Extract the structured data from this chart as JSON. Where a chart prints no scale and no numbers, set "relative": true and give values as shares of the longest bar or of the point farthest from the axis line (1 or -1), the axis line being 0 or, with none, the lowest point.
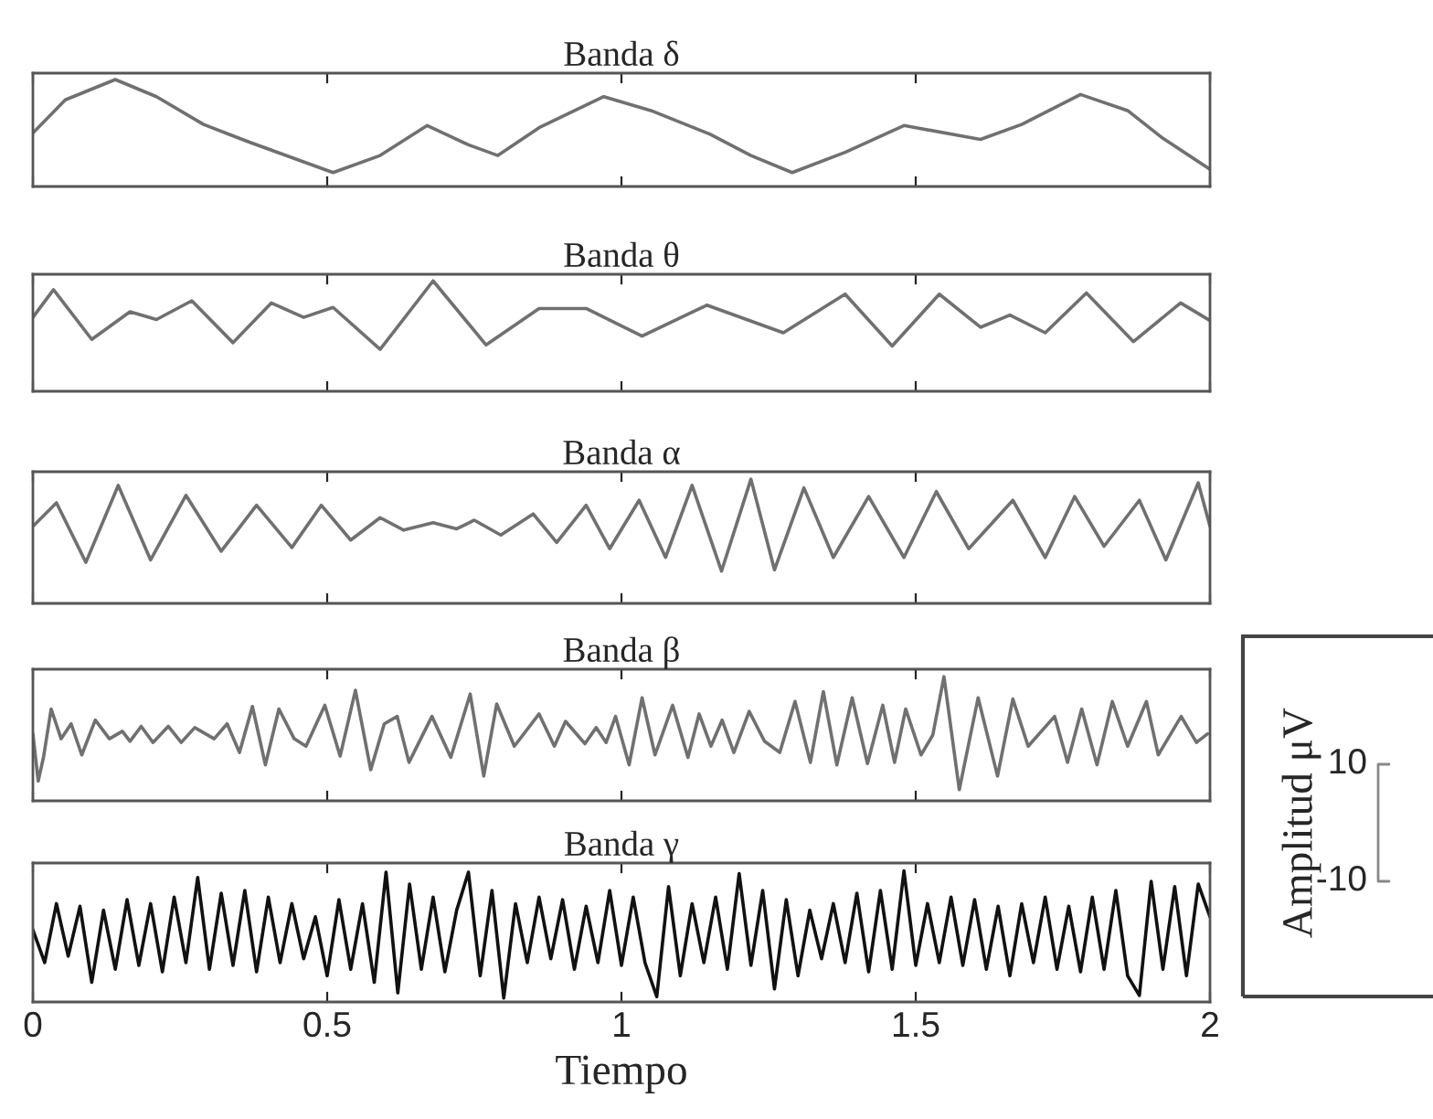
{
  "chart_data": [
    {
      "type": "line",
      "title": "Banda δ",
      "relative": true,
      "xlim": [
        0,
        2
      ],
      "xticks": [
        0,
        0.5,
        1,
        1.5,
        2
      ],
      "tick_labels": false,
      "series": [
        {
          "color": "#707070",
          "x": [
            0,
            0.055,
            0.14,
            0.21,
            0.29,
            0.37,
            0.51,
            0.59,
            0.67,
            0.74,
            0.79,
            0.86,
            0.97,
            1.05,
            1.15,
            1.22,
            1.29,
            1.38,
            1.48,
            1.61,
            1.68,
            1.78,
            1.86,
            1.92,
            2.0
          ],
          "values": [
            0.5,
            0.81,
            1.0,
            0.84,
            0.58,
            0.41,
            0.13,
            0.29,
            0.57,
            0.39,
            0.29,
            0.55,
            0.84,
            0.71,
            0.49,
            0.29,
            0.13,
            0.32,
            0.57,
            0.44,
            0.58,
            0.86,
            0.71,
            0.45,
            0.16
          ]
        }
      ]
    },
    {
      "type": "line",
      "title": "Banda θ",
      "relative": true,
      "xlim": [
        0,
        2
      ],
      "xticks": [
        0,
        0.5,
        1,
        1.5,
        2
      ],
      "tick_labels": false,
      "series": [
        {
          "color": "#707070",
          "x": [
            0,
            0.035,
            0.1,
            0.165,
            0.21,
            0.27,
            0.34,
            0.405,
            0.46,
            0.51,
            0.59,
            0.68,
            0.77,
            0.86,
            0.94,
            1.035,
            1.145,
            1.275,
            1.38,
            1.46,
            1.54,
            1.61,
            1.66,
            1.72,
            1.79,
            1.87,
            1.95,
            2.0
          ],
          "values": [
            0.67,
            0.92,
            0.47,
            0.72,
            0.65,
            0.82,
            0.44,
            0.8,
            0.67,
            0.76,
            0.38,
            1.0,
            0.42,
            0.75,
            0.75,
            0.5,
            0.78,
            0.53,
            0.88,
            0.41,
            0.88,
            0.58,
            0.69,
            0.53,
            0.89,
            0.45,
            0.8,
            0.64
          ]
        }
      ]
    },
    {
      "type": "line",
      "title": "Banda α",
      "relative": true,
      "xlim": [
        0,
        2
      ],
      "xticks": [
        0,
        0.5,
        1,
        1.5,
        2
      ],
      "tick_labels": false,
      "series": [
        {
          "color": "#707070",
          "x": [
            0,
            0.04,
            0.09,
            0.145,
            0.2,
            0.26,
            0.32,
            0.38,
            0.44,
            0.49,
            0.54,
            0.59,
            0.63,
            0.68,
            0.72,
            0.75,
            0.795,
            0.85,
            0.89,
            0.94,
            0.98,
            1.03,
            1.075,
            1.12,
            1.17,
            1.22,
            1.26,
            1.31,
            1.36,
            1.42,
            1.48,
            1.535,
            1.59,
            1.665,
            1.72,
            1.77,
            1.82,
            1.88,
            1.925,
            1.98,
            2.0
          ],
          "values": [
            0.62,
            0.81,
            0.33,
            0.95,
            0.35,
            0.87,
            0.42,
            0.79,
            0.45,
            0.79,
            0.51,
            0.69,
            0.59,
            0.65,
            0.6,
            0.67,
            0.55,
            0.72,
            0.49,
            0.79,
            0.44,
            0.83,
            0.37,
            0.95,
            0.26,
            1.0,
            0.27,
            0.93,
            0.37,
            0.86,
            0.37,
            0.9,
            0.44,
            0.83,
            0.37,
            0.86,
            0.46,
            0.83,
            0.35,
            0.97,
            0.62
          ]
        }
      ]
    },
    {
      "type": "line",
      "title": "Banda β",
      "relative": true,
      "xlim": [
        0,
        2
      ],
      "xticks": [
        0,
        0.5,
        1,
        1.5,
        2
      ],
      "tick_labels": false,
      "series": [
        {
          "color": "#707070",
          "x": [
            0,
            0.009,
            0.018,
            0.031,
            0.048,
            0.065,
            0.083,
            0.106,
            0.13,
            0.152,
            0.165,
            0.184,
            0.204,
            0.23,
            0.252,
            0.275,
            0.308,
            0.33,
            0.351,
            0.373,
            0.395,
            0.418,
            0.444,
            0.464,
            0.496,
            0.522,
            0.548,
            0.574,
            0.597,
            0.619,
            0.639,
            0.678,
            0.71,
            0.743,
            0.766,
            0.788,
            0.818,
            0.86,
            0.886,
            0.905,
            0.938,
            0.957,
            0.974,
            0.99,
            1.013,
            1.035,
            1.057,
            1.087,
            1.113,
            1.132,
            1.152,
            1.171,
            1.191,
            1.217,
            1.243,
            1.269,
            1.295,
            1.321,
            1.343,
            1.366,
            1.392,
            1.418,
            1.444,
            1.464,
            1.483,
            1.509,
            1.529,
            1.548,
            1.574,
            1.606,
            1.639,
            1.665,
            1.691,
            1.736,
            1.758,
            1.782,
            1.808,
            1.834,
            1.86,
            1.892,
            1.912,
            1.951,
            1.977,
            1.996
          ],
          "values": [
            0.54,
            0.16,
            0.35,
            0.74,
            0.5,
            0.62,
            0.37,
            0.65,
            0.5,
            0.56,
            0.48,
            0.6,
            0.47,
            0.6,
            0.47,
            0.59,
            0.5,
            0.62,
            0.39,
            0.76,
            0.29,
            0.74,
            0.5,
            0.44,
            0.77,
            0.36,
            0.89,
            0.25,
            0.62,
            0.68,
            0.31,
            0.68,
            0.35,
            0.86,
            0.2,
            0.78,
            0.44,
            0.7,
            0.44,
            0.64,
            0.46,
            0.59,
            0.47,
            0.68,
            0.29,
            0.83,
            0.37,
            0.77,
            0.35,
            0.7,
            0.44,
            0.65,
            0.39,
            0.72,
            0.48,
            0.39,
            0.8,
            0.31,
            0.88,
            0.29,
            0.83,
            0.3,
            0.77,
            0.31,
            0.74,
            0.37,
            0.53,
            1.0,
            0.09,
            0.83,
            0.2,
            0.82,
            0.44,
            0.68,
            0.31,
            0.74,
            0.29,
            0.8,
            0.44,
            0.8,
            0.37,
            0.68,
            0.47,
            0.54
          ]
        }
      ]
    },
    {
      "type": "line",
      "title": "Banda γ",
      "xlabel": "Tiempo",
      "relative": true,
      "xlim": [
        0,
        2
      ],
      "xticks": [
        0,
        0.5,
        1,
        1.5,
        2
      ],
      "tick_labels": "x",
      "series": [
        {
          "color": "#111111",
          "x": [
            0,
            0.02,
            0.04,
            0.06,
            0.08,
            0.1,
            0.12,
            0.14,
            0.16,
            0.18,
            0.2,
            0.22,
            0.24,
            0.26,
            0.28,
            0.3,
            0.32,
            0.34,
            0.36,
            0.38,
            0.4,
            0.42,
            0.44,
            0.46,
            0.48,
            0.5,
            0.52,
            0.54,
            0.56,
            0.58,
            0.6,
            0.62,
            0.64,
            0.66,
            0.68,
            0.7,
            0.72,
            0.74,
            0.76,
            0.78,
            0.8,
            0.82,
            0.84,
            0.86,
            0.88,
            0.9,
            0.92,
            0.94,
            0.96,
            0.98,
            1.0,
            1.02,
            1.04,
            1.06,
            1.08,
            1.1,
            1.12,
            1.14,
            1.16,
            1.18,
            1.2,
            1.22,
            1.24,
            1.26,
            1.28,
            1.3,
            1.32,
            1.34,
            1.36,
            1.38,
            1.4,
            1.42,
            1.44,
            1.46,
            1.48,
            1.5,
            1.52,
            1.54,
            1.56,
            1.58,
            1.6,
            1.62,
            1.64,
            1.66,
            1.68,
            1.7,
            1.72,
            1.74,
            1.76,
            1.78,
            1.8,
            1.82,
            1.84,
            1.86,
            1.88,
            1.9,
            1.92,
            1.94,
            1.96,
            1.98,
            2.0
          ],
          "values": [
            0.55,
            0.3,
            0.75,
            0.35,
            0.73,
            0.15,
            0.7,
            0.25,
            0.78,
            0.28,
            0.75,
            0.23,
            0.8,
            0.3,
            0.95,
            0.25,
            0.83,
            0.28,
            0.85,
            0.23,
            0.8,
            0.3,
            0.75,
            0.33,
            0.65,
            0.2,
            0.78,
            0.25,
            0.75,
            0.15,
            0.99,
            0.07,
            0.9,
            0.25,
            0.8,
            0.23,
            0.7,
            0.99,
            0.2,
            0.85,
            0.03,
            0.75,
            0.3,
            0.8,
            0.33,
            0.78,
            0.25,
            0.73,
            0.3,
            0.85,
            0.28,
            0.8,
            0.3,
            0.04,
            0.88,
            0.2,
            0.75,
            0.3,
            0.8,
            0.25,
            0.98,
            0.28,
            0.85,
            0.1,
            0.78,
            0.2,
            0.7,
            0.33,
            0.75,
            0.3,
            0.83,
            0.23,
            0.85,
            0.25,
            1.0,
            0.28,
            0.75,
            0.3,
            0.8,
            0.28,
            0.78,
            0.25,
            0.73,
            0.2,
            0.75,
            0.3,
            0.8,
            0.25,
            0.73,
            0.23,
            0.8,
            0.25,
            0.85,
            0.2,
            0.05,
            0.92,
            0.25,
            0.88,
            0.2,
            0.9,
            0.65
          ]
        }
      ]
    },
    {
      "type": "other",
      "ylabel": "Amplitud μV",
      "annotations": [
        "10",
        "-10"
      ]
    }
  ]
}
